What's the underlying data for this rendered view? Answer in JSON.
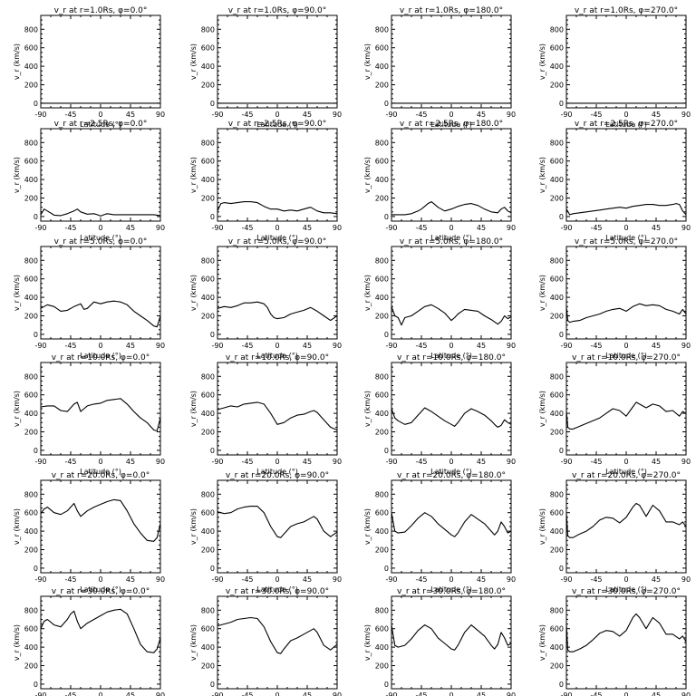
{
  "figure": {
    "xlabel": "Latitude (°)",
    "ylabel": "v_r (km/s)",
    "xlim": [
      -90,
      90
    ],
    "xticks": [
      -90,
      -45,
      0,
      45,
      90
    ],
    "ylim": [
      -50,
      950
    ],
    "yticks": [
      0,
      200,
      400,
      600,
      800
    ]
  },
  "chart_data": [
    {
      "type": "line",
      "title": "v_r at r=1.0Rs, φ=0.0°",
      "x": [
        -90,
        90
      ],
      "y": [
        0,
        0
      ]
    },
    {
      "type": "line",
      "title": "v_r at r=1.0Rs, φ=90.0°",
      "x": [
        -90,
        90
      ],
      "y": [
        0,
        0
      ]
    },
    {
      "type": "line",
      "title": "v_r at r=1.0Rs, φ=180.0°",
      "x": [
        -90,
        90
      ],
      "y": [
        0,
        0
      ]
    },
    {
      "type": "line",
      "title": "v_r at r=1.0Rs, φ=270.0°",
      "x": [
        -90,
        90
      ],
      "y": [
        0,
        0
      ]
    },
    {
      "type": "line",
      "title": "v_r at r=2.5Rs, φ=0.0°",
      "x": [
        -90,
        -85,
        -80,
        -70,
        -60,
        -50,
        -40,
        -35,
        -30,
        -20,
        -10,
        -5,
        0,
        5,
        10,
        20,
        30,
        40,
        50,
        60,
        70,
        80,
        90
      ],
      "y": [
        20,
        80,
        60,
        15,
        10,
        30,
        60,
        80,
        50,
        25,
        30,
        20,
        5,
        20,
        30,
        20,
        20,
        20,
        20,
        20,
        20,
        20,
        10
      ]
    },
    {
      "type": "line",
      "title": "v_r at r=2.5Rs, φ=90.0°",
      "x": [
        -90,
        -85,
        -80,
        -70,
        -60,
        -50,
        -40,
        -30,
        -20,
        -10,
        0,
        10,
        20,
        30,
        40,
        50,
        60,
        70,
        80,
        90
      ],
      "y": [
        60,
        140,
        150,
        140,
        150,
        160,
        160,
        150,
        110,
        80,
        80,
        60,
        70,
        60,
        80,
        100,
        60,
        40,
        40,
        30
      ]
    },
    {
      "type": "line",
      "title": "v_r at r=2.5Rs, φ=180.0°",
      "x": [
        -90,
        -80,
        -70,
        -60,
        -50,
        -45,
        -40,
        -35,
        -30,
        -25,
        -20,
        -10,
        0,
        10,
        20,
        30,
        40,
        50,
        60,
        70,
        75,
        80,
        85,
        90
      ],
      "y": [
        20,
        20,
        20,
        30,
        60,
        80,
        110,
        140,
        160,
        130,
        100,
        60,
        80,
        110,
        130,
        140,
        120,
        80,
        50,
        40,
        80,
        100,
        60,
        40
      ]
    },
    {
      "type": "line",
      "title": "v_r at r=2.5Rs, φ=270.0°",
      "x": [
        -90,
        -85,
        -80,
        -70,
        -60,
        -50,
        -40,
        -30,
        -20,
        -10,
        0,
        10,
        20,
        30,
        40,
        50,
        60,
        70,
        75,
        80,
        85,
        90
      ],
      "y": [
        80,
        20,
        30,
        40,
        50,
        60,
        70,
        80,
        90,
        100,
        90,
        110,
        120,
        130,
        130,
        120,
        120,
        130,
        140,
        130,
        60,
        20
      ]
    },
    {
      "type": "line",
      "title": "v_r at r=5.0Rs, φ=0.0°",
      "x": [
        -90,
        -80,
        -70,
        -60,
        -50,
        -40,
        -30,
        -25,
        -20,
        -10,
        0,
        10,
        20,
        30,
        40,
        50,
        60,
        70,
        80,
        85,
        90
      ],
      "y": [
        280,
        320,
        300,
        250,
        260,
        300,
        330,
        270,
        280,
        350,
        330,
        350,
        360,
        350,
        320,
        250,
        200,
        150,
        90,
        80,
        200
      ]
    },
    {
      "type": "line",
      "title": "v_r at r=5.0Rs, φ=90.0°",
      "x": [
        -90,
        -80,
        -70,
        -60,
        -50,
        -40,
        -30,
        -20,
        -15,
        -10,
        -5,
        0,
        10,
        20,
        30,
        40,
        50,
        60,
        70,
        80,
        90
      ],
      "y": [
        280,
        300,
        290,
        310,
        340,
        340,
        350,
        330,
        290,
        220,
        180,
        170,
        180,
        220,
        240,
        260,
        290,
        250,
        200,
        150,
        200
      ]
    },
    {
      "type": "line",
      "title": "v_r at r=5.0Rs, φ=180.0°",
      "x": [
        -90,
        -85,
        -80,
        -75,
        -70,
        -60,
        -50,
        -40,
        -30,
        -20,
        -10,
        0,
        5,
        10,
        20,
        30,
        40,
        50,
        60,
        70,
        75,
        80,
        85,
        90
      ],
      "y": [
        300,
        200,
        180,
        100,
        180,
        200,
        250,
        300,
        320,
        280,
        230,
        150,
        180,
        220,
        270,
        260,
        250,
        200,
        160,
        110,
        140,
        200,
        170,
        190
      ]
    },
    {
      "type": "line",
      "title": "v_r at r=5.0Rs, φ=270.0°",
      "x": [
        -90,
        -88,
        -85,
        -80,
        -70,
        -60,
        -50,
        -40,
        -30,
        -20,
        -10,
        0,
        10,
        20,
        30,
        40,
        50,
        60,
        70,
        80,
        85,
        90
      ],
      "y": [
        300,
        150,
        130,
        140,
        150,
        180,
        200,
        220,
        250,
        270,
        280,
        250,
        300,
        330,
        310,
        320,
        310,
        270,
        250,
        220,
        270,
        220
      ]
    },
    {
      "type": "line",
      "title": "v_r at r=10.0Rs, φ=0.0°",
      "x": [
        -90,
        -80,
        -70,
        -60,
        -50,
        -45,
        -40,
        -35,
        -30,
        -25,
        -20,
        -10,
        0,
        10,
        20,
        30,
        40,
        50,
        60,
        70,
        80,
        85,
        90
      ],
      "y": [
        470,
        480,
        480,
        430,
        420,
        460,
        500,
        520,
        420,
        450,
        480,
        500,
        510,
        540,
        550,
        560,
        500,
        420,
        350,
        300,
        220,
        210,
        350
      ]
    },
    {
      "type": "line",
      "title": "v_r at r=10.0Rs, φ=90.0°",
      "x": [
        -90,
        -80,
        -70,
        -60,
        -50,
        -40,
        -30,
        -20,
        -10,
        0,
        10,
        20,
        30,
        40,
        50,
        55,
        60,
        70,
        80,
        90
      ],
      "y": [
        440,
        460,
        480,
        470,
        500,
        510,
        520,
        500,
        400,
        280,
        300,
        350,
        380,
        390,
        420,
        430,
        410,
        330,
        250,
        220
      ]
    },
    {
      "type": "line",
      "title": "v_r at r=10.0Rs, φ=180.0°",
      "x": [
        -90,
        -85,
        -80,
        -70,
        -60,
        -50,
        -40,
        -30,
        -20,
        -10,
        0,
        5,
        10,
        20,
        30,
        40,
        50,
        60,
        65,
        70,
        75,
        80,
        85,
        90
      ],
      "y": [
        450,
        350,
        320,
        280,
        300,
        380,
        460,
        420,
        370,
        320,
        280,
        260,
        300,
        400,
        450,
        420,
        380,
        320,
        280,
        250,
        270,
        330,
        300,
        280
      ]
    },
    {
      "type": "line",
      "title": "v_r at r=10.0Rs, φ=270.0°",
      "x": [
        -90,
        -88,
        -85,
        -80,
        -70,
        -60,
        -50,
        -40,
        -30,
        -20,
        -10,
        0,
        10,
        15,
        20,
        30,
        40,
        50,
        60,
        70,
        80,
        85,
        90
      ],
      "y": [
        430,
        250,
        230,
        230,
        260,
        290,
        320,
        350,
        400,
        450,
        430,
        370,
        470,
        520,
        500,
        460,
        500,
        480,
        420,
        430,
        370,
        420,
        400
      ]
    },
    {
      "type": "line",
      "title": "v_r at r=20.0Rs, φ=0.0°",
      "x": [
        -90,
        -85,
        -80,
        -70,
        -60,
        -50,
        -45,
        -40,
        -35,
        -30,
        -20,
        -10,
        0,
        10,
        20,
        30,
        40,
        50,
        60,
        70,
        80,
        85,
        90
      ],
      "y": [
        590,
        640,
        660,
        600,
        580,
        620,
        660,
        700,
        620,
        560,
        620,
        660,
        690,
        720,
        740,
        730,
        620,
        480,
        380,
        300,
        290,
        330,
        480
      ]
    },
    {
      "type": "line",
      "title": "v_r at r=20.0Rs, φ=90.0°",
      "x": [
        -90,
        -80,
        -70,
        -60,
        -50,
        -40,
        -30,
        -20,
        -10,
        0,
        5,
        10,
        20,
        30,
        40,
        50,
        55,
        60,
        70,
        80,
        90
      ],
      "y": [
        610,
        590,
        600,
        640,
        660,
        670,
        670,
        600,
        450,
        340,
        330,
        370,
        450,
        480,
        500,
        540,
        560,
        530,
        400,
        340,
        390
      ]
    },
    {
      "type": "line",
      "title": "v_r at r=20.0Rs, φ=180.0°",
      "x": [
        -90,
        -85,
        -80,
        -70,
        -60,
        -50,
        -40,
        -30,
        -20,
        -10,
        0,
        5,
        10,
        20,
        30,
        40,
        50,
        60,
        65,
        70,
        75,
        80,
        85,
        90
      ],
      "y": [
        600,
        400,
        380,
        390,
        460,
        540,
        600,
        560,
        480,
        420,
        360,
        340,
        380,
        500,
        580,
        530,
        480,
        400,
        360,
        400,
        500,
        450,
        380,
        400
      ]
    },
    {
      "type": "line",
      "title": "v_r at r=20.0Rs, φ=270.0°",
      "x": [
        -90,
        -88,
        -85,
        -80,
        -70,
        -60,
        -50,
        -40,
        -30,
        -20,
        -10,
        0,
        10,
        15,
        20,
        30,
        40,
        50,
        60,
        70,
        80,
        85,
        90
      ],
      "y": [
        600,
        350,
        330,
        330,
        370,
        400,
        450,
        520,
        550,
        540,
        490,
        550,
        660,
        700,
        680,
        560,
        680,
        620,
        500,
        500,
        470,
        500,
        450
      ]
    },
    {
      "type": "line",
      "title": "v_r at r=30.0Rs, φ=0.0°",
      "x": [
        -90,
        -85,
        -80,
        -70,
        -60,
        -50,
        -45,
        -40,
        -35,
        -30,
        -20,
        -10,
        0,
        10,
        20,
        30,
        40,
        50,
        60,
        70,
        80,
        85,
        90
      ],
      "y": [
        600,
        680,
        700,
        640,
        620,
        700,
        760,
        790,
        680,
        600,
        660,
        700,
        740,
        780,
        800,
        810,
        760,
        600,
        430,
        350,
        340,
        380,
        500
      ]
    },
    {
      "type": "line",
      "title": "v_r at r=30.0Rs, φ=90.0°",
      "x": [
        -90,
        -80,
        -70,
        -60,
        -50,
        -40,
        -30,
        -20,
        -10,
        0,
        5,
        10,
        20,
        30,
        40,
        50,
        55,
        60,
        70,
        80,
        90
      ],
      "y": [
        630,
        650,
        670,
        700,
        710,
        720,
        710,
        620,
        460,
        340,
        330,
        380,
        470,
        500,
        540,
        580,
        600,
        560,
        420,
        370,
        430
      ]
    },
    {
      "type": "line",
      "title": "v_r at r=30.0Rs, φ=180.0°",
      "x": [
        -90,
        -85,
        -80,
        -70,
        -60,
        -50,
        -40,
        -30,
        -20,
        -10,
        0,
        5,
        10,
        20,
        30,
        40,
        50,
        60,
        65,
        70,
        75,
        80,
        85,
        90
      ],
      "y": [
        640,
        420,
        400,
        420,
        490,
        580,
        640,
        600,
        500,
        440,
        380,
        370,
        420,
        560,
        640,
        580,
        520,
        420,
        380,
        430,
        560,
        500,
        420,
        440
      ]
    },
    {
      "type": "line",
      "title": "v_r at r=30.0Rs, φ=270.0°",
      "x": [
        -90,
        -88,
        -85,
        -80,
        -70,
        -60,
        -50,
        -40,
        -30,
        -20,
        -10,
        0,
        10,
        15,
        20,
        30,
        40,
        50,
        60,
        70,
        80,
        85,
        90
      ],
      "y": [
        650,
        370,
        350,
        350,
        380,
        420,
        480,
        550,
        580,
        570,
        520,
        580,
        720,
        760,
        720,
        600,
        720,
        660,
        540,
        540,
        490,
        520,
        460
      ]
    }
  ]
}
